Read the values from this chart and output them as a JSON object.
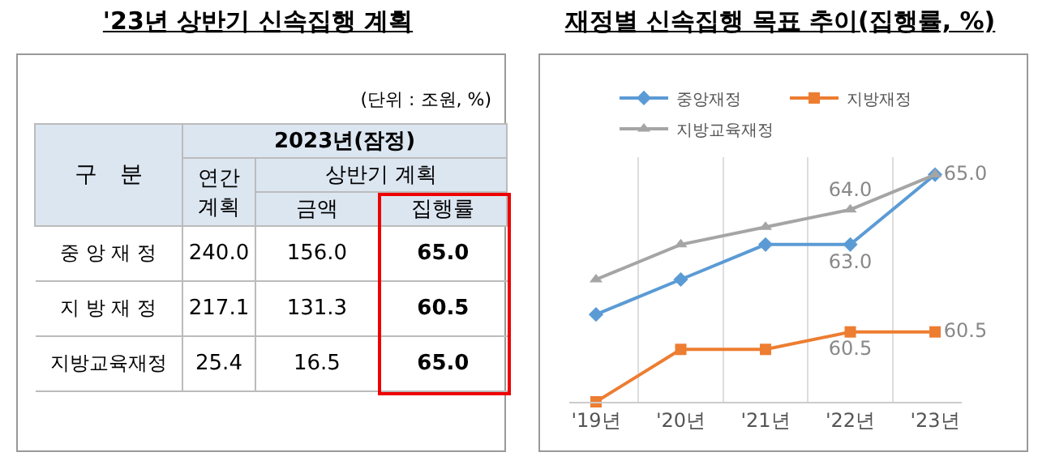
{
  "chart_data": [
    {
      "type": "other",
      "title": "'23년 상반기 신속집행 계획",
      "annotations": [
        "(단위 : 조원, %)",
        "구　분",
        "2023년(잠정)",
        "상반기 계획"
      ],
      "categories": [
        "연간 계획",
        "금액",
        "집행률"
      ],
      "y_categories": [
        "중 앙 재 정",
        "지 방 재 정",
        "지방교육재정"
      ],
      "cell_labels": [
        [
          "240.0",
          "156.0",
          "65.0"
        ],
        [
          "217.1",
          "131.3",
          "60.5"
        ],
        [
          "25.4",
          "16.5",
          "65.0"
        ]
      ]
    },
    {
      "type": "line",
      "title": "재정별 신속집행 목표 추이(집행률, %)",
      "categories": [
        "'19년",
        "'20년",
        "'21년",
        "'22년",
        "'23년"
      ],
      "ylim": [
        58.5,
        65.5
      ],
      "grid": "x",
      "legend": "top",
      "tick_labels": "x",
      "series": [
        {
          "name": "중앙재정",
          "color": "#5b9bd5",
          "marker": "diamond",
          "values": [
            61.0,
            62.0,
            63.0,
            63.0,
            65.0
          ],
          "value_labels": [
            null,
            null,
            null,
            "63.0",
            "65.0"
          ]
        },
        {
          "name": "지방재정",
          "color": "#ed7d31",
          "marker": "square",
          "values": [
            58.5,
            60.0,
            60.0,
            60.5,
            60.5
          ],
          "value_labels": [
            null,
            null,
            null,
            "60.5",
            "60.5"
          ]
        },
        {
          "name": "지방교육재정",
          "color": "#a5a5a5",
          "marker": "triangle",
          "values": [
            62.0,
            63.0,
            63.5,
            64.0,
            65.0
          ],
          "value_labels": [
            null,
            null,
            null,
            "64.0",
            null
          ]
        }
      ]
    }
  ]
}
